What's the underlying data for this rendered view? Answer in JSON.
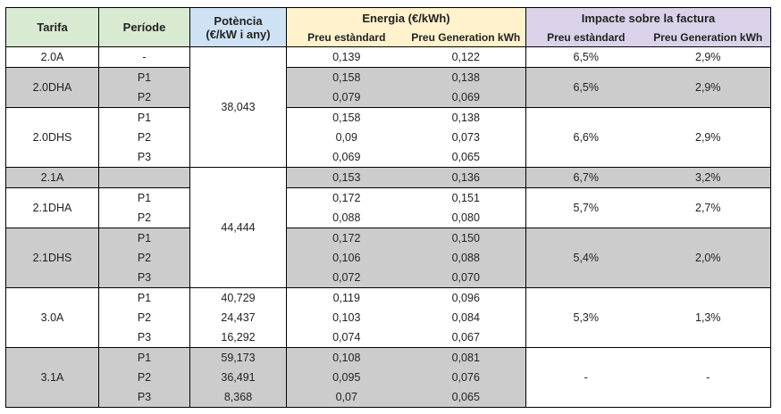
{
  "headers": {
    "tarifa": "Tarifa",
    "periode": "Període",
    "potencia_line1": "Potència",
    "potencia_line2": "(€/kW i any)",
    "energia": "Energia (€/kWh)",
    "impacte": "Impacte sobre la factura",
    "preu_estandard": "Preu estàndard",
    "preu_generation": "Preu Generation kWh"
  },
  "rows": [
    {
      "tarifa": "2.0A",
      "periode": "-",
      "potencia": "",
      "energia_std": "0,139",
      "energia_gen": "0,122",
      "imp_std": "6,5%",
      "imp_gen": "2,9%"
    },
    {
      "tarifa": "2.0DHA",
      "periode": "P1",
      "potencia": "",
      "energia_std": "0,158",
      "energia_gen": "0,138",
      "imp_std": "6,5%",
      "imp_gen": "2,9%"
    },
    {
      "tarifa": "",
      "periode": "P2",
      "potencia": "",
      "energia_std": "0,079",
      "energia_gen": "0,069",
      "imp_std": "",
      "imp_gen": ""
    },
    {
      "tarifa": "2.0DHS",
      "periode": "P1",
      "potencia": "",
      "energia_std": "0,158",
      "energia_gen": "0,138",
      "imp_std": "6,6%",
      "imp_gen": "2,9%"
    },
    {
      "tarifa": "",
      "periode": "P2",
      "potencia": "",
      "energia_std": "0,09",
      "energia_gen": "0,073",
      "imp_std": "",
      "imp_gen": ""
    },
    {
      "tarifa": "",
      "periode": "P3",
      "potencia": "",
      "energia_std": "0,069",
      "energia_gen": "0,065",
      "imp_std": "",
      "imp_gen": ""
    },
    {
      "tarifa": "2.1A",
      "periode": "",
      "potencia": "",
      "energia_std": "0,153",
      "energia_gen": "0,136",
      "imp_std": "6,7%",
      "imp_gen": "3,2%"
    },
    {
      "tarifa": "2.1DHA",
      "periode": "P1",
      "potencia": "",
      "energia_std": "0,172",
      "energia_gen": "0,151",
      "imp_std": "5,7%",
      "imp_gen": "2,7%"
    },
    {
      "tarifa": "",
      "periode": "P2",
      "potencia": "",
      "energia_std": "0,088",
      "energia_gen": "0,080",
      "imp_std": "",
      "imp_gen": ""
    },
    {
      "tarifa": "2.1DHS",
      "periode": "P1",
      "potencia": "",
      "energia_std": "0,172",
      "energia_gen": "0,150",
      "imp_std": "5,4%",
      "imp_gen": "2,0%"
    },
    {
      "tarifa": "",
      "periode": "P2",
      "potencia": "",
      "energia_std": "0,106",
      "energia_gen": "0,088",
      "imp_std": "",
      "imp_gen": ""
    },
    {
      "tarifa": "",
      "periode": "P3",
      "potencia": "",
      "energia_std": "0,072",
      "energia_gen": "0,070",
      "imp_std": "",
      "imp_gen": ""
    },
    {
      "tarifa": "3.0A",
      "periode": "P1",
      "potencia": "40,729",
      "energia_std": "0,119",
      "energia_gen": "0,096",
      "imp_std": "5,3%",
      "imp_gen": "1,3%"
    },
    {
      "tarifa": "",
      "periode": "P2",
      "potencia": "24,437",
      "energia_std": "0,103",
      "energia_gen": "0,084",
      "imp_std": "",
      "imp_gen": ""
    },
    {
      "tarifa": "",
      "periode": "P3",
      "potencia": "16,292",
      "energia_std": "0,074",
      "energia_gen": "0,067",
      "imp_std": "",
      "imp_gen": ""
    },
    {
      "tarifa": "3.1A",
      "periode": "P1",
      "potencia": "59,173",
      "energia_std": "0,108",
      "energia_gen": "0,081",
      "imp_std": "-",
      "imp_gen": "-"
    },
    {
      "tarifa": "",
      "periode": "P2",
      "potencia": "36,491",
      "energia_std": "0,095",
      "energia_gen": "0,076",
      "imp_std": "",
      "imp_gen": ""
    },
    {
      "tarifa": "",
      "periode": "P3",
      "potencia": "8,368",
      "energia_std": "0,07",
      "energia_gen": "0,065",
      "imp_std": "",
      "imp_gen": ""
    }
  ],
  "merged": {
    "potencia_2_0": "38,043",
    "potencia_2_1": "44,444"
  }
}
